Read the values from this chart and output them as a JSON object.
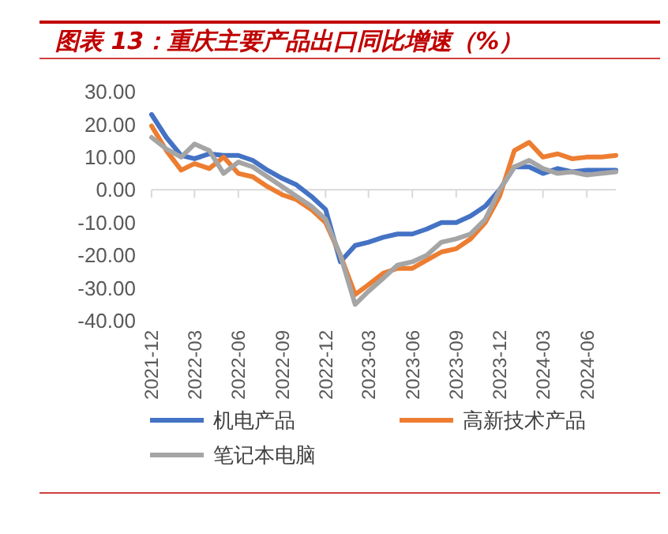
{
  "chart_data": {
    "type": "line",
    "title": "图表 13：重庆主要产品出口同比增速（%）",
    "x": [
      "2021-12",
      "2022-01",
      "2022-02",
      "2022-03",
      "2022-04",
      "2022-05",
      "2022-06",
      "2022-07",
      "2022-08",
      "2022-09",
      "2022-10",
      "2022-11",
      "2022-12",
      "2023-01",
      "2023-02",
      "2023-03",
      "2023-04",
      "2023-05",
      "2023-06",
      "2023-07",
      "2023-08",
      "2023-09",
      "2023-10",
      "2023-11",
      "2023-12",
      "2024-01",
      "2024-02",
      "2024-03",
      "2024-04",
      "2024-05",
      "2024-06",
      "2024-07",
      "2024-08"
    ],
    "series": [
      {
        "name": "机电产品",
        "color": "#4472c4",
        "values": [
          23,
          16,
          10.5,
          9.5,
          11,
          10.5,
          10.5,
          9,
          6,
          3.5,
          1.5,
          -2,
          -6,
          -22,
          -17,
          -16,
          -14.5,
          -13.5,
          -13.5,
          -12,
          -10,
          -10,
          -8,
          -5,
          0,
          7,
          7,
          5,
          6.5,
          5.5,
          6,
          6,
          6
        ]
      },
      {
        "name": "高新技术产品",
        "color": "#ed7d31",
        "values": [
          19.5,
          12,
          6,
          8,
          6.5,
          10,
          5,
          4,
          1,
          -1.5,
          -3,
          -6,
          -10,
          -20,
          -32,
          -29,
          -25.5,
          -24,
          -24,
          -21.5,
          -19,
          -18,
          -15,
          -10,
          -2,
          12,
          14.5,
          10,
          11,
          9.5,
          10,
          10,
          10.5
        ]
      },
      {
        "name": "笔记本电脑",
        "color": "#a5a5a5",
        "values": [
          16,
          12.5,
          10,
          14,
          12,
          5,
          8.5,
          7,
          4,
          1,
          -2,
          -5,
          -9,
          -20,
          -35,
          -31,
          -27,
          -23,
          -22,
          -20,
          -16,
          -15,
          -13.5,
          -9,
          0,
          7,
          9,
          6.5,
          5,
          5.5,
          4.5,
          5,
          5.5
        ]
      }
    ],
    "xlim": [
      "2021-12",
      "2024-08"
    ],
    "xticks": [
      {
        "value": "2021-12",
        "label": "2021-12"
      },
      {
        "value": "2022-03",
        "label": "2022-03"
      },
      {
        "value": "2022-06",
        "label": "2022-06"
      },
      {
        "value": "2022-09",
        "label": "2022-09"
      },
      {
        "value": "2022-12",
        "label": "2022-12"
      },
      {
        "value": "2023-03",
        "label": "2023-03"
      },
      {
        "value": "2023-06",
        "label": "2023-06"
      },
      {
        "value": "2023-09",
        "label": "2023-09"
      },
      {
        "value": "2023-12",
        "label": "2023-12"
      },
      {
        "value": "2024-03",
        "label": "2024-03"
      },
      {
        "value": "2024-06",
        "label": "2024-06"
      }
    ],
    "ylim": [
      -40,
      30
    ],
    "yticks": [
      {
        "value": -40,
        "label": "-40.00"
      },
      {
        "value": -30,
        "label": "-30.00"
      },
      {
        "value": -20,
        "label": "-20.00"
      },
      {
        "value": -10,
        "label": "-10.00"
      },
      {
        "value": 0,
        "label": "0.00"
      },
      {
        "value": 10,
        "label": "10.00"
      },
      {
        "value": 20,
        "label": "20.00"
      },
      {
        "value": 30,
        "label": "30.00"
      }
    ],
    "legend": "bottom",
    "marker": "none",
    "line_style": "solid"
  }
}
